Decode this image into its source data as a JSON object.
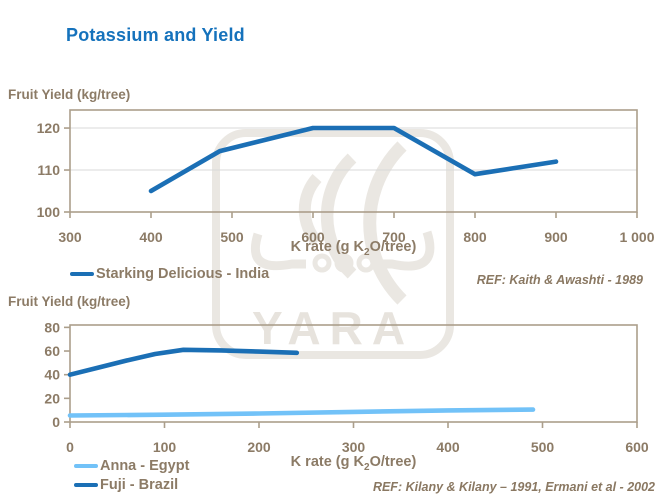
{
  "slide_title": "Potassium and Yield",
  "watermark": {
    "text": "YARA"
  },
  "colors": {
    "title_blue": "#1572BC",
    "dark_blue": "#1B6FB5",
    "light_blue": "#72C2F8",
    "text_brown": "#8C7B66",
    "axis_tan": "#AB9E8B",
    "gridline": "#D8D8D8",
    "watermark_gray": "#EAE7E2"
  },
  "chart_data": [
    {
      "type": "line",
      "ylabel": "Fruit Yield (kg/tree)",
      "xlabel": "K rate (g K2O/tree)",
      "xlabel_parts": {
        "pre": "K rate (g K",
        "sub": "2",
        "post": "O/tree)"
      },
      "ref": "REF: Kaith & Awashti - 1989",
      "xlim": [
        300,
        1000
      ],
      "ylim": [
        100,
        124.3
      ],
      "xticks": [
        300,
        400,
        500,
        600,
        700,
        800,
        900,
        1000
      ],
      "xtick_labels": [
        "300",
        "400",
        "500",
        "600",
        "700",
        "800",
        "900",
        "1 000"
      ],
      "yticks": [
        100,
        110,
        120
      ],
      "ytick_labels": [
        "100",
        "110",
        "120"
      ],
      "grid_y": true,
      "legend_position": "below-left",
      "series": [
        {
          "name": "Starking Delicious - India",
          "color": "#1B6FB5",
          "x": [
            400,
            485,
            600,
            700,
            800,
            900
          ],
          "y": [
            105,
            114.5,
            120,
            120,
            109,
            112
          ]
        }
      ]
    },
    {
      "type": "line",
      "ylabel": "Fruit Yield (kg/tree)",
      "xlabel": "K rate (g K2O/tree)",
      "xlabel_parts": {
        "pre": "K rate (g K",
        "sub": "2",
        "post": "O/tree)"
      },
      "ref": "REF: Kilany & Kilany – 1991, Ermani et al - 2002",
      "xlim": [
        0,
        600
      ],
      "ylim": [
        0,
        82
      ],
      "xticks": [
        0,
        100,
        200,
        300,
        400,
        500,
        600
      ],
      "xtick_labels": [
        "0",
        "100",
        "200",
        "300",
        "400",
        "500",
        "600"
      ],
      "yticks": [
        0,
        20,
        40,
        60,
        80
      ],
      "ytick_labels": [
        "0",
        "20",
        "40",
        "60",
        "80"
      ],
      "grid_y": false,
      "legend_position": "below-left",
      "series": [
        {
          "name": "Anna - Egypt",
          "color": "#72C2F8",
          "x": [
            0,
            100,
            200,
            300,
            400,
            490
          ],
          "y": [
            5.5,
            6.2,
            7.2,
            8.5,
            9.8,
            10.5
          ]
        },
        {
          "name": "Fuji - Brazil",
          "color": "#1B6FB5",
          "x": [
            0,
            30,
            60,
            90,
            120,
            160,
            200,
            240
          ],
          "y": [
            40,
            46,
            52,
            57.5,
            61,
            60.5,
            59.5,
            58.5
          ]
        }
      ]
    }
  ]
}
